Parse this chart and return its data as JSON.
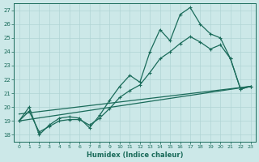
{
  "xlabel": "Humidex (Indice chaleur)",
  "bg_color": "#cce8e8",
  "line_color": "#1a6b5a",
  "grid_color": "#b0d4d4",
  "xlim": [
    -0.5,
    23.5
  ],
  "ylim": [
    17.5,
    27.5
  ],
  "yticks": [
    18,
    19,
    20,
    21,
    22,
    23,
    24,
    25,
    26,
    27
  ],
  "xticks": [
    0,
    1,
    2,
    3,
    4,
    5,
    6,
    7,
    8,
    9,
    10,
    11,
    12,
    13,
    14,
    15,
    16,
    17,
    18,
    19,
    20,
    21,
    22,
    23
  ],
  "series1_x": [
    0,
    1,
    2,
    3,
    4,
    5,
    6,
    7,
    8,
    9,
    10,
    11,
    12,
    13,
    14,
    15,
    16,
    17,
    18,
    19,
    20,
    21,
    22,
    23
  ],
  "series1_y": [
    19.0,
    20.0,
    18.0,
    18.7,
    19.2,
    19.3,
    19.2,
    18.5,
    19.4,
    20.5,
    21.5,
    22.3,
    21.8,
    24.0,
    25.6,
    24.8,
    26.7,
    27.2,
    26.0,
    25.3,
    25.0,
    23.5,
    21.3,
    21.5
  ],
  "series2_x": [
    0,
    1,
    2,
    3,
    4,
    5,
    6,
    7,
    8,
    9,
    10,
    11,
    12,
    13,
    14,
    15,
    16,
    17,
    18,
    19,
    20,
    21,
    22,
    23
  ],
  "series2_y": [
    19.0,
    19.7,
    18.2,
    18.6,
    19.0,
    19.1,
    19.1,
    18.7,
    19.2,
    19.9,
    20.7,
    21.2,
    21.6,
    22.5,
    23.5,
    24.0,
    24.6,
    25.1,
    24.7,
    24.2,
    24.5,
    23.5,
    21.3,
    21.5
  ],
  "trend1_x": [
    0,
    23
  ],
  "trend1_y": [
    19.0,
    21.5
  ],
  "trend2_x": [
    0,
    23
  ],
  "trend2_y": [
    19.5,
    21.5
  ]
}
